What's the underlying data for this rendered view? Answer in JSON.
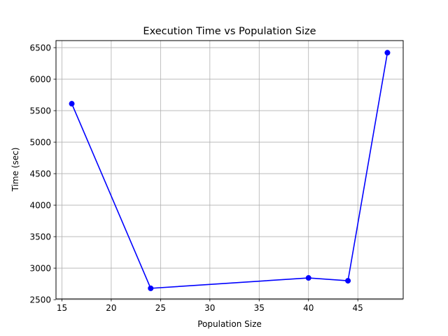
{
  "chart_data": {
    "type": "line",
    "title": "Execution Time vs Population Size",
    "xlabel": "Population Size",
    "ylabel": "Time (sec)",
    "xlim": [
      14.4,
      49.6
    ],
    "ylim": [
      2512,
      6612
    ],
    "xticks": [
      15,
      20,
      25,
      30,
      35,
      40,
      45
    ],
    "yticks": [
      2500,
      3000,
      3500,
      4000,
      4500,
      5000,
      5500,
      6000,
      6500
    ],
    "grid": true,
    "series": [
      {
        "color": "#0000ff",
        "marker": "circle",
        "x": [
          16,
          24,
          40,
          44,
          48
        ],
        "y": [
          5610,
          2680,
          2845,
          2800,
          6420
        ]
      }
    ]
  }
}
